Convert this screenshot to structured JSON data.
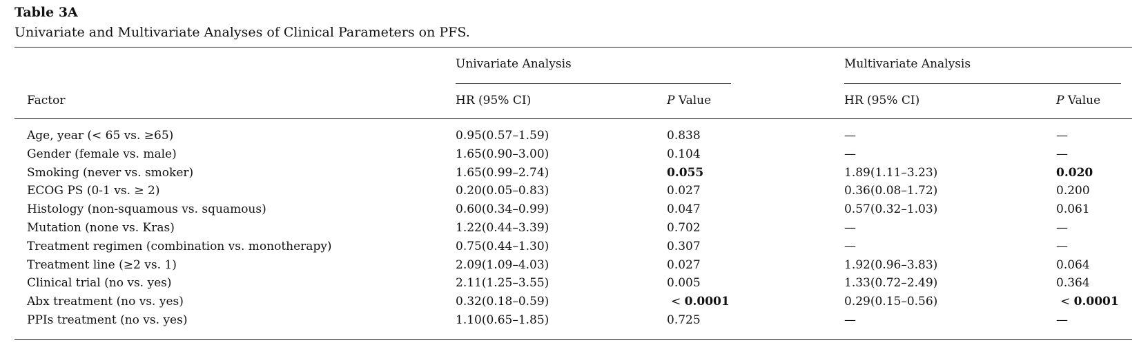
{
  "table_label": "Table 3A",
  "caption": "Univariate and Multivariate Analyses of Clinical Parameters on PFS.",
  "headers": {
    "univariate_group": "Univariate Analysis",
    "multivariate_group": "Multivariate Analysis",
    "factor": "Factor",
    "uni_hr": "HR (95% CI)",
    "uni_p_italic": "P",
    "uni_p_rest": " Value",
    "multi_hr": "HR (95% CI)",
    "multi_p_italic": "P",
    "multi_p_rest": " Value"
  },
  "rows": [
    {
      "factor": "Age, year (< 65 vs. ≥65)",
      "uni_hr": "0.95(0.57–1.59)",
      "uni_p": "0.838",
      "multi_hr": "—",
      "multi_p": "—"
    },
    {
      "factor": "Gender (female vs. male)",
      "uni_hr": "1.65(0.90–3.00)",
      "uni_p": "0.104",
      "multi_hr": "—",
      "multi_p": "—"
    },
    {
      "factor": "Smoking (never vs. smoker)",
      "uni_hr": "1.65(0.99–2.74)",
      "uni_p": "0.055",
      "uni_p_bold": true,
      "multi_hr": "1.89(1.11–3.23)",
      "multi_p": "0.020",
      "multi_p_bold": true
    },
    {
      "factor": "ECOG PS (0-1 vs. ≥ 2)",
      "uni_hr": "0.20(0.05–0.83)",
      "uni_p": "0.027",
      "multi_hr": "0.36(0.08–1.72)",
      "multi_p": "0.200"
    },
    {
      "factor": "Histology (non-squamous vs. squamous)",
      "uni_hr": "0.60(0.34–0.99)",
      "uni_p": "0.047",
      "multi_hr": "0.57(0.32–1.03)",
      "multi_p": "0.061"
    },
    {
      "factor": "Mutation (none vs. Kras)",
      "uni_hr": "1.22(0.44–3.39)",
      "uni_p": "0.702",
      "multi_hr": "—",
      "multi_p": "—"
    },
    {
      "factor": "Treatment regimen (combination vs. monotherapy)",
      "uni_hr": "0.75(0.44–1.30)",
      "uni_p": "0.307",
      "multi_hr": "—",
      "multi_p": "—"
    },
    {
      "factor": "Treatment line (≥2 vs. 1)",
      "uni_hr": "2.09(1.09–4.03)",
      "uni_p": "0.027",
      "multi_hr": "1.92(0.96–3.83)",
      "multi_p": "0.064"
    },
    {
      "factor": "Clinical trial (no vs. yes)",
      "uni_hr": "2.11(1.25–3.55)",
      "uni_p": "0.005",
      "multi_hr": "1.33(0.72–2.49)",
      "multi_p": "0.364"
    },
    {
      "factor": "Abx treatment (no vs. yes)",
      "uni_hr": "0.32(0.18–0.59)",
      "uni_p_prefix": "< ",
      "uni_p": "0.0001",
      "uni_p_bold": true,
      "multi_hr": "0.29(0.15–0.56)",
      "multi_p_prefix": "< ",
      "multi_p": "0.0001",
      "multi_p_bold": true
    },
    {
      "factor": "PPIs treatment (no vs. yes)",
      "uni_hr": "1.10(0.65–1.85)",
      "uni_p": "0.725",
      "multi_hr": "—",
      "multi_p": "—"
    }
  ]
}
